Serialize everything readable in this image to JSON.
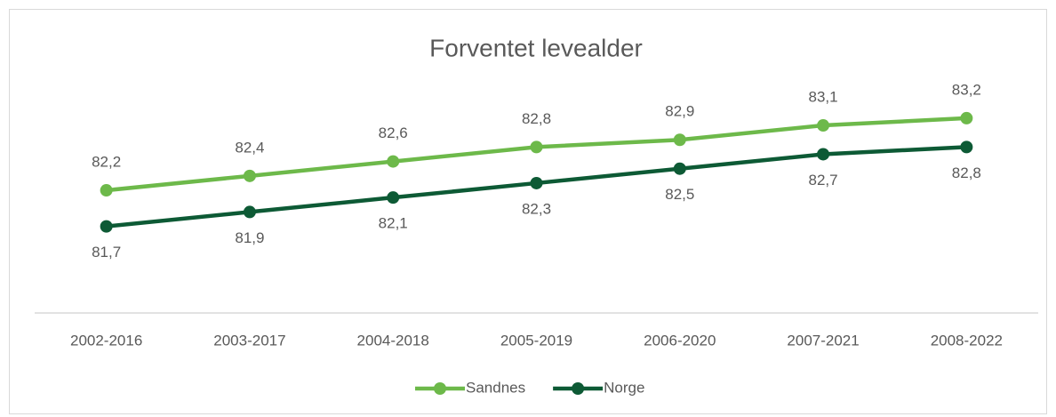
{
  "chart_data": {
    "type": "line",
    "title": "Forventet levealder",
    "categories": [
      "2002-2016",
      "2003-2017",
      "2004-2018",
      "2005-2019",
      "2006-2020",
      "2007-2021",
      "2008-2022"
    ],
    "series": [
      {
        "name": "Sandnes",
        "color": "#6db94a",
        "values": [
          82.2,
          82.4,
          82.6,
          82.8,
          82.9,
          83.1,
          83.2
        ],
        "value_labels": [
          "82,2",
          "82,4",
          "82,6",
          "82,8",
          "82,9",
          "83,1",
          "83,2"
        ]
      },
      {
        "name": "Norge",
        "color": "#0d5a35",
        "values": [
          81.7,
          81.9,
          82.1,
          82.3,
          82.5,
          82.7,
          82.8
        ],
        "value_labels": [
          "81,7",
          "81,9",
          "82,1",
          "82,3",
          "82,5",
          "82,7",
          "82,8"
        ]
      }
    ],
    "ylim": [
      80.5,
      84
    ],
    "legend": "bottom"
  }
}
